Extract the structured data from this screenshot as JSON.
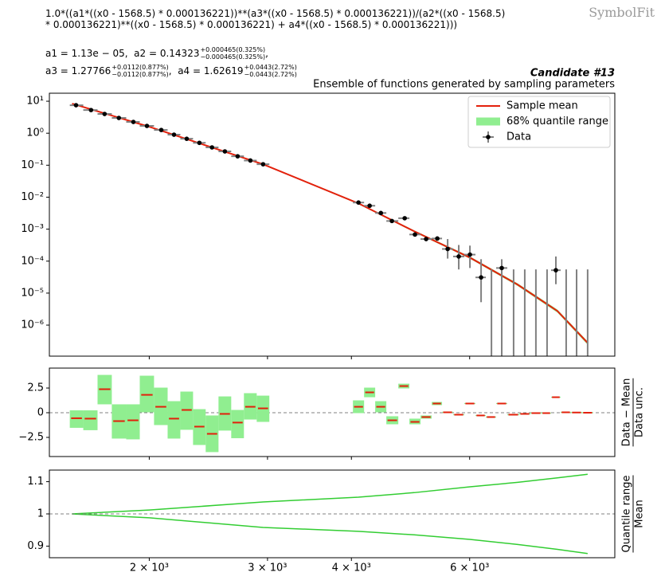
{
  "header": {
    "formula": [
      "1.0*((a1*((x0 - 1568.5) * 0.000136221))**(a3*((x0 - 1568.5) * 0.000136221))/(a2*((x0 - 1568.5)",
      "* 0.000136221)**((x0 - 1568.5) * 0.000136221) + a4*((x0 - 1568.5) * 0.000136221)))"
    ],
    "params": [
      [
        {
          "text": "a1 = 1.13e − 05,  a2 = 0.14323",
          "up": "+0.000465(0.325%)",
          "down": "−0.000465(0.325%)"
        },
        {
          "text": ","
        }
      ],
      [
        {
          "text": "a3 = 1.27766",
          "up": "+0.0112(0.877%)",
          "down": "−0.0112(0.877%)"
        },
        {
          "text": ",  a4 = 1.62619",
          "up": "+0.0443(2.72%)",
          "down": "−0.0443(2.72%)"
        }
      ]
    ],
    "watermark": "SymbolFit"
  },
  "chart_data": [
    {
      "type": "errorbar",
      "title": "Candidate #13",
      "subtitle": "Ensemble of functions generated by sampling parameters",
      "xscale": "log",
      "yscale": "log",
      "xlim": [
        1420,
        9870
      ],
      "ylim": [
        1.07e-07,
        17.8
      ],
      "yticks": [
        {
          "value": 10,
          "label": "10¹"
        },
        {
          "value": 1,
          "label": "10⁰"
        },
        {
          "value": 0.1,
          "label": "10⁻¹"
        },
        {
          "value": 0.01,
          "label": "10⁻²"
        },
        {
          "value": 0.001,
          "label": "10⁻³"
        },
        {
          "value": 0.0001,
          "label": "10⁻⁴"
        },
        {
          "value": 1e-05,
          "label": "10⁻⁵"
        },
        {
          "value": 1e-06,
          "label": "10⁻⁶"
        }
      ],
      "legend": "upper right",
      "bins": {
        "x_low": [
          1523,
          1595,
          1675,
          1759,
          1848,
          1936,
          2033,
          2130,
          2225,
          2324,
          2427,
          2536,
          2649,
          2767,
          2891,
          4021,
          4178,
          4340,
          4509,
          4698,
          4880,
          5070,
          5268,
          5458,
          5670,
          5891,
          6121,
          6342,
          6571,
          6826,
          7112,
          7389,
          7677,
          7932,
          8196,
          8492,
          8822
        ],
        "x_high": [
          1595,
          1675,
          1759,
          1848,
          1936,
          2033,
          2130,
          2225,
          2324,
          2427,
          2536,
          2649,
          2767,
          2891,
          3019,
          4178,
          4340,
          4509,
          4698,
          4880,
          5070,
          5268,
          5458,
          5670,
          5891,
          6121,
          6342,
          6571,
          6826,
          7112,
          7389,
          7677,
          7932,
          8196,
          8492,
          8822,
          9166
        ]
      },
      "series": [
        {
          "name": "Sample mean",
          "type": "line",
          "color": "#e3200b",
          "x": [
            1535,
            2000,
            2955,
            4098,
            4961,
            6006,
            7074,
            8107,
            8992
          ],
          "values": [
            8.4,
            1.59,
            0.107,
            0.0064,
            0.00086,
            0.000129,
            1.84e-05,
            2.76e-06,
            2.78e-07
          ]
        },
        {
          "name": "68% quantile range",
          "type": "band",
          "color": "#90ee90",
          "x": [
            1535,
            2000,
            2955,
            4098,
            4961,
            6006,
            7074,
            8107,
            8992
          ],
          "low": [
            8.4,
            1.571,
            0.1025,
            0.00605,
            0.000804,
            0.000119,
            1.67e-05,
            2.46e-06,
            2.44e-07
          ],
          "high": [
            8.4,
            1.609,
            0.111,
            0.00673,
            0.000917,
            0.00014,
            2.02e-05,
            3.07e-06,
            3.12e-07
          ]
        },
        {
          "name": "Data",
          "type": "errorbar",
          "color": "#000000",
          "error_color": "#808080",
          "x": [
            1556,
            1638,
            1716,
            1802,
            1894,
            1984,
            2084,
            2177,
            2274,
            2375,
            2480,
            2592,
            2708,
            2829,
            2955,
            4098,
            4258,
            4425,
            4596,
            4802,
            4974,
            5168,
            5370,
            5564,
            5780,
            6006,
            6240,
            6466,
            6698,
            6976,
            7248,
            7530,
            7824,
            8064,
            8354,
            8658,
            8992
          ],
          "values": [
            7.5,
            5.3,
            4.0,
            3.0,
            2.25,
            1.69,
            1.26,
            0.9,
            0.67,
            0.5,
            0.36,
            0.27,
            0.19,
            0.14,
            0.107,
            0.0068,
            0.0054,
            0.0032,
            0.0018,
            0.0022,
            0.00068,
            0.00049,
            0.00051,
            0.00024,
            0.00014,
            0.00016,
            3.1e-05,
            null,
            6.1e-05,
            null,
            null,
            null,
            null,
            5.2e-05,
            null,
            null,
            null
          ],
          "y_low": [
            null,
            null,
            null,
            null,
            null,
            null,
            null,
            null,
            null,
            null,
            null,
            null,
            null,
            null,
            null,
            null,
            null,
            null,
            null,
            null,
            null,
            null,
            null,
            0.00012,
            5.5e-05,
            6.1e-05,
            5.2e-06,
            1e-08,
            1e-08,
            1e-08,
            1e-08,
            1e-08,
            1e-08,
            1.9e-05,
            1e-08,
            1e-08,
            1e-08
          ],
          "y_high": [
            null,
            null,
            null,
            null,
            null,
            null,
            null,
            null,
            null,
            null,
            null,
            null,
            null,
            null,
            null,
            null,
            null,
            null,
            null,
            null,
            null,
            null,
            null,
            0.00049,
            0.00032,
            0.000306,
            0.000115,
            5.5e-05,
            0.000115,
            5.5e-05,
            5.5e-05,
            5.5e-05,
            5.5e-05,
            0.00014,
            5.5e-05,
            5.5e-05,
            5.5e-05
          ]
        }
      ]
    },
    {
      "type": "residual",
      "xscale": "log",
      "yscale": "linear",
      "xlim": [
        1420,
        9870
      ],
      "ylim": [
        -4.44,
        4.52
      ],
      "yticks": [
        2.5,
        0,
        {
          "value": -2.5,
          "label": "−2.5"
        }
      ],
      "hline": 0,
      "ylabel": {
        "numerator": "Data − Mean",
        "denominator": "Data unc."
      },
      "color": "#e3200b",
      "box_color": "#90ee90",
      "values": [
        -0.56,
        -0.6,
        2.38,
        -0.85,
        -0.77,
        1.81,
        0.6,
        -0.6,
        0.28,
        -1.41,
        -2.14,
        -0.12,
        -1.0,
        0.6,
        0.44,
        0.6,
        2.06,
        0.6,
        -0.77,
        2.7,
        -0.93,
        -0.44,
        0.93,
        0.04,
        -0.2,
        0.93,
        -0.28,
        -0.44,
        0.93,
        -0.2,
        -0.12,
        -0.04,
        -0.04,
        1.57,
        0.04,
        0.02,
        0.0
      ],
      "low": [
        -1.53,
        -1.77,
        0.85,
        -2.62,
        -2.7,
        0.04,
        -1.25,
        -2.62,
        -1.73,
        -3.27,
        -3.99,
        -1.81,
        -2.58,
        -0.69,
        -0.93,
        -0.04,
        1.57,
        0.04,
        -1.17,
        2.46,
        -1.17,
        -0.6,
        0.77,
        -0.01,
        -0.25,
        0.88,
        -0.33,
        -0.49,
        0.88,
        -0.25,
        -0.17,
        -0.09,
        -0.09,
        1.52,
        -0.01,
        -0.03,
        -0.05
      ],
      "high": [
        0.24,
        0.24,
        3.83,
        0.85,
        0.85,
        3.75,
        2.54,
        1.17,
        2.14,
        0.36,
        -0.28,
        1.65,
        0.28,
        1.98,
        1.73,
        1.25,
        2.54,
        1.17,
        -0.36,
        2.94,
        -0.6,
        -0.28,
        1.09,
        0.09,
        -0.15,
        0.98,
        -0.23,
        -0.39,
        0.98,
        -0.15,
        -0.07,
        0.01,
        0.01,
        1.62,
        0.09,
        0.07,
        0.05
      ]
    },
    {
      "type": "band",
      "xscale": "log",
      "yscale": "linear",
      "xlim": [
        1420,
        9870
      ],
      "ylim": [
        0.864,
        1.136
      ],
      "yticks": [
        1.1,
        1,
        0.9
      ],
      "hline": 1,
      "color": "#32cd32",
      "ylabel": {
        "numerator": "Quantile range",
        "denominator": "Mean"
      },
      "xticks": [
        {
          "value": 2000,
          "label": "2 × 10³"
        },
        {
          "value": 3000,
          "label": "3 × 10³"
        },
        {
          "value": 4000,
          "label": "4 × 10³"
        },
        {
          "value": 6000,
          "label": "6 × 10³"
        }
      ],
      "x": [
        1535,
        2000,
        2955,
        4098,
        4961,
        6006,
        7074,
        8107,
        8992
      ],
      "upper": [
        1.0,
        1.012,
        1.037,
        1.052,
        1.066,
        1.084,
        1.098,
        1.112,
        1.123
      ],
      "lower": [
        1.0,
        0.988,
        0.958,
        0.946,
        0.935,
        0.921,
        0.905,
        0.89,
        0.877
      ]
    }
  ]
}
